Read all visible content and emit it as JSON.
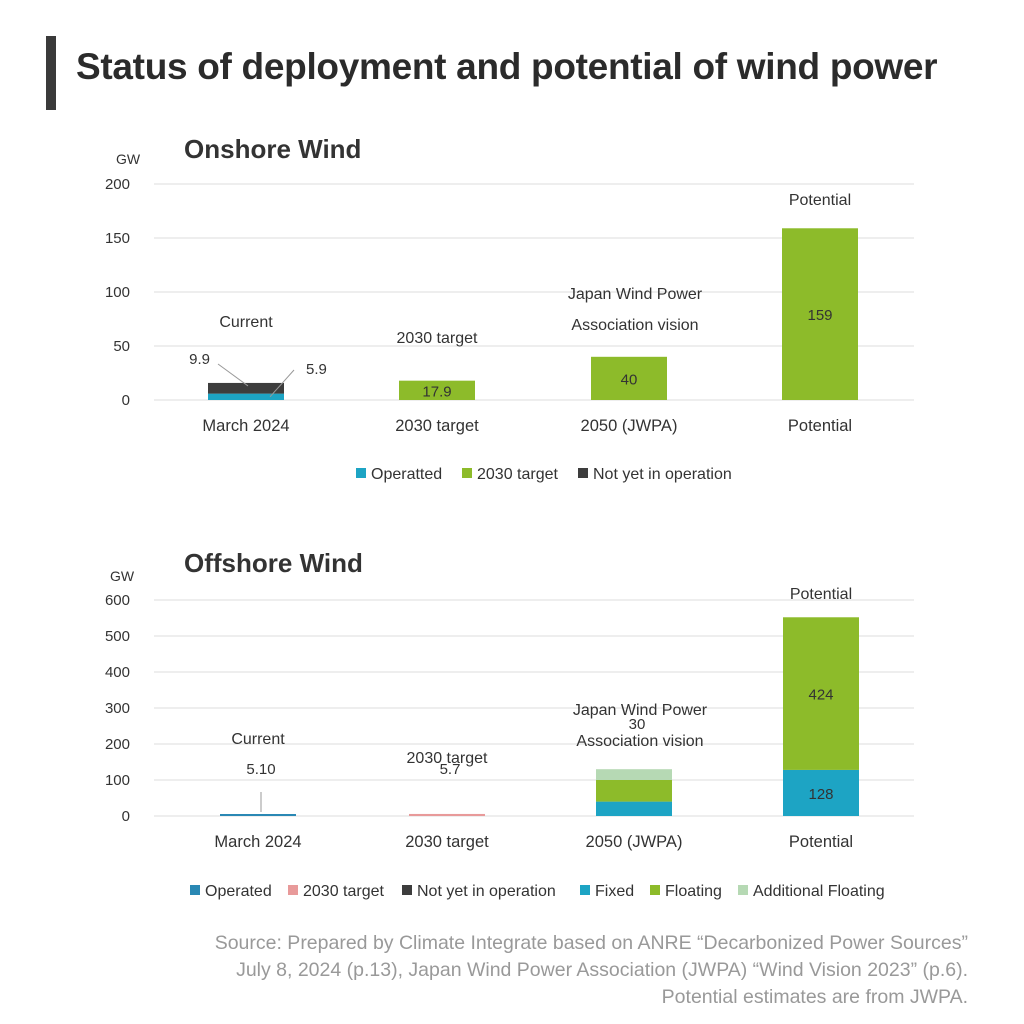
{
  "page_title": "Status of deployment and potential of wind power",
  "source_lines": [
    "Source: Prepared by Climate Integrate based on ANRE “Decarbonized Power Sources”",
    "July 8, 2024 (p.13), Japan Wind Power Association (JWPA) “Wind Vision 2023” (p.6).",
    "Potential estimates are from JWPA."
  ],
  "colors": {
    "operated": "#1da4c4",
    "operated_dark": "#2a88b4",
    "target_onshore": "#8dbb2a",
    "target_offshore": "#e89a9a",
    "not_yet": "#3d3d3d",
    "fixed": "#1da4c4",
    "floating": "#8dbb2a",
    "additional_floating": "#b6d9b4",
    "grid": "#dddddd"
  },
  "chart_data": [
    {
      "id": "onshore",
      "type": "bar",
      "stacked": true,
      "title": "Onshore Wind",
      "unit_label": "GW",
      "ylim": [
        0,
        200
      ],
      "yticks": [
        0,
        50,
        100,
        150,
        200
      ],
      "categories": [
        "March 2024",
        "2030 target",
        "2050 (JWPA)",
        "Potential"
      ],
      "category_headers": [
        "Current",
        "2030 target",
        "Japan Wind Power Association vision",
        "Potential"
      ],
      "series": [
        {
          "name": "Operatted",
          "color": "#1da4c4",
          "values": [
            5.9,
            0,
            0,
            0
          ],
          "labels": [
            "5.9",
            "",
            "",
            ""
          ]
        },
        {
          "name": "2030 target",
          "color": "#8dbb2a",
          "values": [
            0,
            17.9,
            40,
            159
          ],
          "labels": [
            "",
            "17.9",
            "40",
            "159"
          ]
        },
        {
          "name": "Not yet in operation",
          "color": "#3d3d3d",
          "values": [
            9.9,
            0,
            0,
            0
          ],
          "labels": [
            "9.9",
            "",
            "",
            ""
          ]
        }
      ],
      "legend": [
        "Operatted",
        "2030 target",
        "Not yet in operation"
      ],
      "legend_position": "bottom"
    },
    {
      "id": "offshore",
      "type": "bar",
      "stacked": true,
      "title": "Offshore Wind",
      "unit_label": "GW",
      "ylim": [
        0,
        600
      ],
      "yticks": [
        0,
        100,
        200,
        300,
        400,
        500,
        600
      ],
      "categories": [
        "March 2024",
        "2030 target",
        "2050 (JWPA)",
        "Potential"
      ],
      "category_headers": [
        "Current",
        "2030 target",
        "Japan Wind Power Association vision",
        "Potential"
      ],
      "series": [
        {
          "name": "Operated",
          "color": "#2a88b4",
          "values": [
            5.1,
            0,
            0,
            0
          ],
          "labels": [
            "5.10",
            "",
            "",
            ""
          ]
        },
        {
          "name": "2030 target",
          "color": "#e89a9a",
          "values": [
            0,
            5.7,
            0,
            0
          ],
          "labels": [
            "",
            "5.7",
            "",
            ""
          ]
        },
        {
          "name": "Not yet in operation",
          "color": "#3d3d3d",
          "values": [
            0,
            0,
            0,
            0
          ],
          "labels": [
            "",
            "",
            "",
            ""
          ]
        },
        {
          "name": "Fixed",
          "color": "#1da4c4",
          "values": [
            0,
            0,
            40,
            128
          ],
          "labels": [
            "",
            "",
            "40",
            "128"
          ]
        },
        {
          "name": "Floating",
          "color": "#8dbb2a",
          "values": [
            0,
            0,
            60,
            424
          ],
          "labels": [
            "",
            "",
            "60",
            "424"
          ]
        },
        {
          "name": "Additional Floating",
          "color": "#b6d9b4",
          "values": [
            0,
            0,
            30,
            0
          ],
          "labels": [
            "",
            "",
            "30",
            ""
          ]
        }
      ],
      "legend": [
        "Operated",
        "2030 target",
        "Not yet in operation",
        "Fixed",
        "Floating",
        "Additional Floating"
      ],
      "legend_position": "bottom"
    }
  ]
}
